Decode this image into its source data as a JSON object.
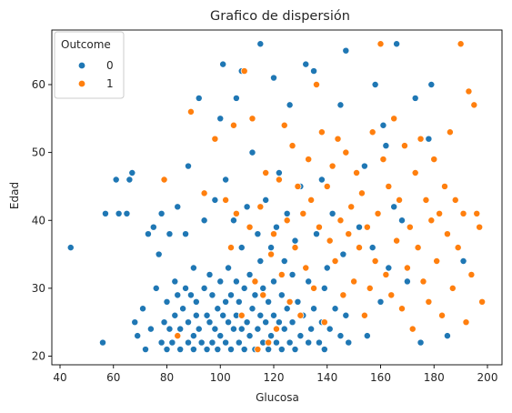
{
  "chart_data": {
    "type": "scatter",
    "title": "Grafico de dispersión",
    "xlabel": "Glucosa",
    "ylabel": "Edad",
    "xlim": [
      40,
      200
    ],
    "ylim": [
      20,
      66
    ],
    "xticks": [
      40,
      60,
      80,
      100,
      120,
      140,
      160,
      180,
      200
    ],
    "yticks": [
      20,
      30,
      40,
      50,
      60
    ],
    "grid": false,
    "legend": {
      "title": "Outcome",
      "placement": "top-left"
    },
    "colors": {
      "0": "#1f77b4",
      "1": "#ff7f0e"
    },
    "series": [
      {
        "name": "0",
        "points": [
          [
            44,
            36
          ],
          [
            56,
            22
          ],
          [
            57,
            41
          ],
          [
            61,
            46
          ],
          [
            62,
            41
          ],
          [
            65,
            41
          ],
          [
            66,
            46
          ],
          [
            67,
            47
          ],
          [
            68,
            25
          ],
          [
            69,
            23
          ],
          [
            71,
            27
          ],
          [
            72,
            21
          ],
          [
            73,
            38
          ],
          [
            74,
            24
          ],
          [
            75,
            39
          ],
          [
            76,
            30
          ],
          [
            77,
            35
          ],
          [
            78,
            22
          ],
          [
            78,
            41
          ],
          [
            79,
            25
          ],
          [
            80,
            21
          ],
          [
            80,
            28
          ],
          [
            81,
            24
          ],
          [
            81,
            38
          ],
          [
            82,
            22
          ],
          [
            83,
            26
          ],
          [
            83,
            31
          ],
          [
            84,
            29
          ],
          [
            84,
            42
          ],
          [
            85,
            21
          ],
          [
            85,
            24
          ],
          [
            86,
            27
          ],
          [
            87,
            30
          ],
          [
            87,
            38
          ],
          [
            88,
            22
          ],
          [
            88,
            25
          ],
          [
            88,
            48
          ],
          [
            89,
            29
          ],
          [
            90,
            21
          ],
          [
            90,
            23
          ],
          [
            90,
            33
          ],
          [
            91,
            26
          ],
          [
            91,
            28
          ],
          [
            92,
            24
          ],
          [
            92,
            58
          ],
          [
            93,
            22
          ],
          [
            94,
            30
          ],
          [
            94,
            40
          ],
          [
            95,
            21
          ],
          [
            95,
            26
          ],
          [
            96,
            25
          ],
          [
            96,
            32
          ],
          [
            97,
            22
          ],
          [
            97,
            29
          ],
          [
            98,
            24
          ],
          [
            98,
            43
          ],
          [
            99,
            21
          ],
          [
            99,
            27
          ],
          [
            100,
            23
          ],
          [
            100,
            31
          ],
          [
            100,
            55
          ],
          [
            101,
            26
          ],
          [
            101,
            63
          ],
          [
            102,
            22
          ],
          [
            102,
            28
          ],
          [
            102,
            46
          ],
          [
            103,
            25
          ],
          [
            103,
            33
          ],
          [
            104,
            21
          ],
          [
            104,
            29
          ],
          [
            105,
            24
          ],
          [
            105,
            40
          ],
          [
            106,
            26
          ],
          [
            106,
            31
          ],
          [
            106,
            58
          ],
          [
            107,
            22
          ],
          [
            107,
            28
          ],
          [
            108,
            24
          ],
          [
            108,
            36
          ],
          [
            108,
            62
          ],
          [
            109,
            21
          ],
          [
            109,
            30
          ],
          [
            110,
            25
          ],
          [
            110,
            42
          ],
          [
            111,
            23
          ],
          [
            111,
            32
          ],
          [
            112,
            27
          ],
          [
            112,
            50
          ],
          [
            113,
            21
          ],
          [
            113,
            29
          ],
          [
            114,
            24
          ],
          [
            114,
            38
          ],
          [
            115,
            26
          ],
          [
            115,
            34
          ],
          [
            115,
            66
          ],
          [
            116,
            22
          ],
          [
            116,
            30
          ],
          [
            117,
            25
          ],
          [
            117,
            43
          ],
          [
            118,
            21
          ],
          [
            118,
            28
          ],
          [
            119,
            23
          ],
          [
            119,
            36
          ],
          [
            120,
            26
          ],
          [
            120,
            31
          ],
          [
            120,
            61
          ],
          [
            121,
            22
          ],
          [
            121,
            39
          ],
          [
            122,
            25
          ],
          [
            122,
            47
          ],
          [
            123,
            21
          ],
          [
            123,
            29
          ],
          [
            124,
            24
          ],
          [
            124,
            34
          ],
          [
            125,
            27
          ],
          [
            125,
            41
          ],
          [
            126,
            22
          ],
          [
            126,
            57
          ],
          [
            127,
            25
          ],
          [
            127,
            32
          ],
          [
            128,
            21
          ],
          [
            128,
            37
          ],
          [
            129,
            28
          ],
          [
            130,
            23
          ],
          [
            130,
            45
          ],
          [
            131,
            26
          ],
          [
            132,
            63
          ],
          [
            133,
            22
          ],
          [
            133,
            31
          ],
          [
            134,
            24
          ],
          [
            135,
            27
          ],
          [
            135,
            62
          ],
          [
            136,
            38
          ],
          [
            137,
            22
          ],
          [
            138,
            25
          ],
          [
            138,
            46
          ],
          [
            139,
            21
          ],
          [
            139,
            30
          ],
          [
            140,
            33
          ],
          [
            141,
            24
          ],
          [
            142,
            41
          ],
          [
            143,
            27
          ],
          [
            145,
            23
          ],
          [
            145,
            57
          ],
          [
            146,
            35
          ],
          [
            147,
            26
          ],
          [
            147,
            65
          ],
          [
            148,
            22
          ],
          [
            150,
            31
          ],
          [
            152,
            39
          ],
          [
            154,
            48
          ],
          [
            155,
            23
          ],
          [
            157,
            36
          ],
          [
            158,
            60
          ],
          [
            160,
            28
          ],
          [
            161,
            54
          ],
          [
            162,
            51
          ],
          [
            163,
            33
          ],
          [
            165,
            42
          ],
          [
            166,
            66
          ],
          [
            168,
            40
          ],
          [
            170,
            31
          ],
          [
            173,
            58
          ],
          [
            175,
            22
          ],
          [
            178,
            52
          ],
          [
            179,
            60
          ],
          [
            185,
            23
          ],
          [
            191,
            34
          ]
        ]
      },
      {
        "name": "1",
        "points": [
          [
            79,
            46
          ],
          [
            84,
            23
          ],
          [
            89,
            56
          ],
          [
            94,
            44
          ],
          [
            98,
            52
          ],
          [
            102,
            43
          ],
          [
            104,
            36
          ],
          [
            105,
            54
          ],
          [
            106,
            41
          ],
          [
            108,
            26
          ],
          [
            109,
            62
          ],
          [
            111,
            39
          ],
          [
            112,
            55
          ],
          [
            113,
            31
          ],
          [
            114,
            21
          ],
          [
            115,
            42
          ],
          [
            116,
            29
          ],
          [
            117,
            47
          ],
          [
            118,
            22
          ],
          [
            119,
            35
          ],
          [
            120,
            38
          ],
          [
            121,
            24
          ],
          [
            122,
            46
          ],
          [
            123,
            32
          ],
          [
            124,
            54
          ],
          [
            125,
            40
          ],
          [
            126,
            28
          ],
          [
            127,
            51
          ],
          [
            128,
            36
          ],
          [
            129,
            45
          ],
          [
            130,
            26
          ],
          [
            131,
            41
          ],
          [
            132,
            33
          ],
          [
            133,
            49
          ],
          [
            134,
            43
          ],
          [
            135,
            30
          ],
          [
            136,
            60
          ],
          [
            137,
            39
          ],
          [
            138,
            53
          ],
          [
            139,
            25
          ],
          [
            140,
            45
          ],
          [
            141,
            37
          ],
          [
            142,
            48
          ],
          [
            143,
            34
          ],
          [
            144,
            52
          ],
          [
            145,
            40
          ],
          [
            146,
            29
          ],
          [
            147,
            50
          ],
          [
            148,
            38
          ],
          [
            149,
            42
          ],
          [
            150,
            31
          ],
          [
            151,
            47
          ],
          [
            152,
            36
          ],
          [
            153,
            44
          ],
          [
            154,
            26
          ],
          [
            155,
            39
          ],
          [
            156,
            30
          ],
          [
            157,
            53
          ],
          [
            158,
            34
          ],
          [
            159,
            41
          ],
          [
            160,
            66
          ],
          [
            161,
            49
          ],
          [
            162,
            32
          ],
          [
            163,
            45
          ],
          [
            164,
            29
          ],
          [
            165,
            55
          ],
          [
            166,
            37
          ],
          [
            167,
            43
          ],
          [
            168,
            27
          ],
          [
            169,
            51
          ],
          [
            170,
            33
          ],
          [
            171,
            39
          ],
          [
            172,
            24
          ],
          [
            173,
            47
          ],
          [
            174,
            36
          ],
          [
            175,
            52
          ],
          [
            176,
            31
          ],
          [
            177,
            43
          ],
          [
            178,
            28
          ],
          [
            179,
            40
          ],
          [
            180,
            49
          ],
          [
            181,
            34
          ],
          [
            182,
            41
          ],
          [
            183,
            26
          ],
          [
            184,
            45
          ],
          [
            185,
            38
          ],
          [
            186,
            53
          ],
          [
            187,
            30
          ],
          [
            188,
            43
          ],
          [
            189,
            36
          ],
          [
            190,
            66
          ],
          [
            191,
            41
          ],
          [
            192,
            25
          ],
          [
            193,
            59
          ],
          [
            194,
            32
          ],
          [
            195,
            57
          ],
          [
            196,
            41
          ],
          [
            197,
            39
          ],
          [
            198,
            28
          ]
        ]
      }
    ]
  }
}
